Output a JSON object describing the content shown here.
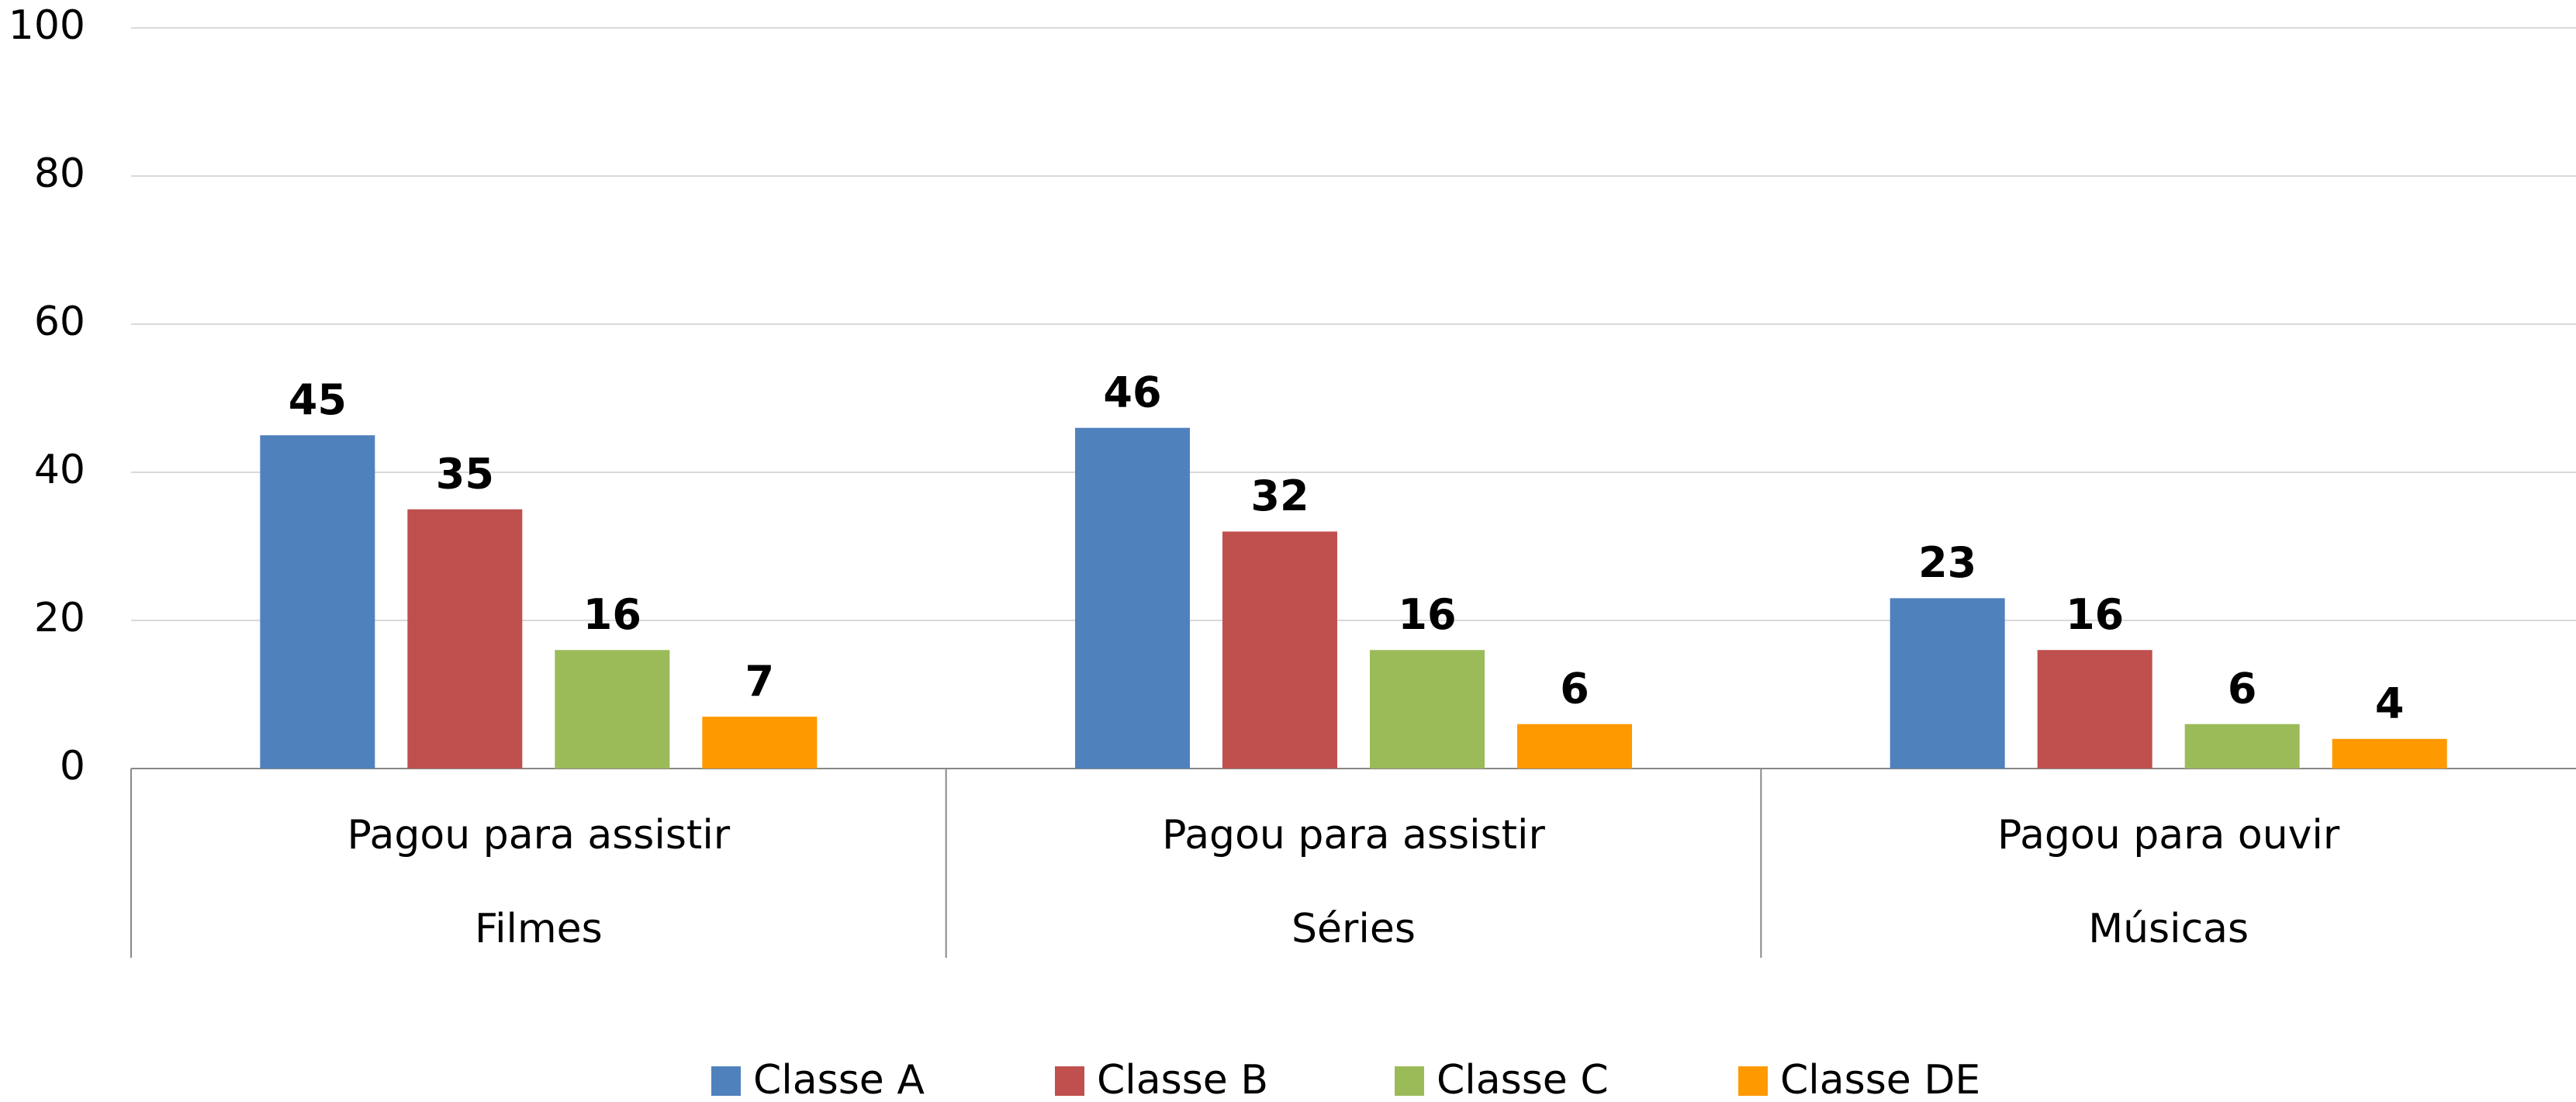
{
  "chart_data": {
    "type": "bar",
    "category_groups": [
      "Pagou para assistir",
      "Pagou para assistir",
      "Pagou para ouvir"
    ],
    "categories": [
      "Filmes",
      "Séries",
      "Músicas"
    ],
    "series": [
      {
        "name": "Classe A",
        "color": "#4f81bd",
        "values": [
          45,
          46,
          23
        ]
      },
      {
        "name": "Classe B",
        "color": "#c0504d",
        "values": [
          35,
          32,
          16
        ]
      },
      {
        "name": "Classe C",
        "color": "#9bbb59",
        "values": [
          16,
          16,
          6
        ]
      },
      {
        "name": "Classe DE",
        "color": "#ff9900",
        "values": [
          7,
          6,
          4
        ]
      }
    ],
    "ylim": [
      0,
      100
    ],
    "yticks": [
      0,
      20,
      40,
      60,
      80,
      100
    ],
    "grid": true,
    "legend": "bottom"
  }
}
